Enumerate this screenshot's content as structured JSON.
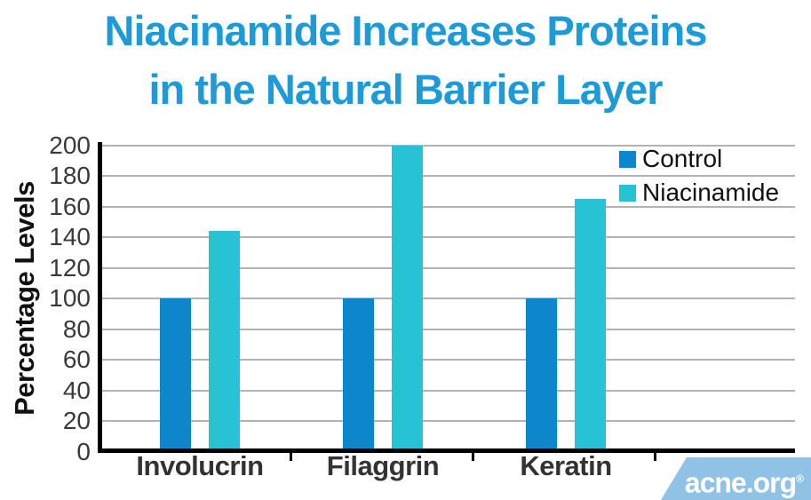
{
  "title": {
    "line1": "Niacinamide Increases Proteins",
    "line2": "in the Natural Barrier Layer"
  },
  "y_axis": {
    "label": "Percentage Levels",
    "tick_labels": [
      "0",
      "20",
      "40",
      "60",
      "80",
      "100",
      "120",
      "140",
      "160",
      "180",
      "200"
    ]
  },
  "legend": {
    "items": [
      {
        "label": "Control",
        "color": "#0d86cb"
      },
      {
        "label": "Niacinamide",
        "color": "#27c2d3"
      }
    ]
  },
  "chart_data": {
    "type": "bar",
    "categories": [
      "Involucrin",
      "Filaggrin",
      "Keratin"
    ],
    "series": [
      {
        "name": "Control",
        "color": "#0d86cb",
        "values": [
          100,
          100,
          100
        ]
      },
      {
        "name": "Niacinamide",
        "color": "#27c2d3",
        "values": [
          144,
          200,
          165
        ]
      }
    ],
    "title": "Niacinamide Increases Proteins in the Natural Barrier Layer",
    "xlabel": "",
    "ylabel": "Percentage Levels",
    "ylim": [
      0,
      200
    ],
    "ytick_step": 20,
    "grid": true,
    "legend_position": "top-right"
  },
  "branding": {
    "logo_text": "acne.org",
    "registered_mark": "®",
    "badge_color": "#8fc2e5"
  },
  "colors": {
    "title_blue": "#1e9ad7",
    "control_blue": "#0d86cb",
    "niacinamide_cyan": "#27c2d3",
    "gridline_gray": "#b3b3b3",
    "axis_black": "#000000",
    "badge_blue": "#8fc2e5"
  }
}
